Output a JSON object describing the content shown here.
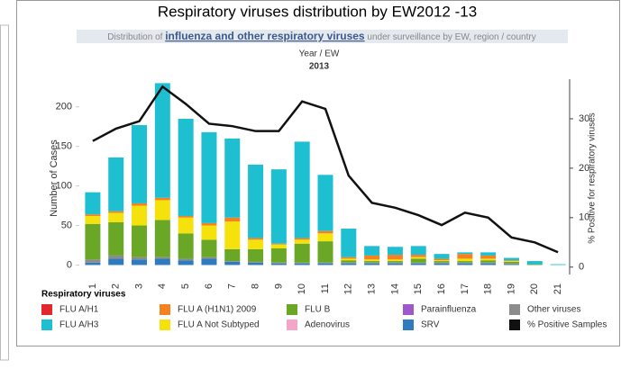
{
  "chart_data": {
    "type": "stacked_bar_line",
    "title": "Respiratory viruses distribution by EW2012 -13",
    "subtitle": [
      "Distribution of",
      "influenza and other respiratory viruses",
      "under surveillance by EW, region / country"
    ],
    "x_header": "Year / EW",
    "x_group": "2013",
    "ylabel": "Number of Cases",
    "y2label": "% Positive for respiratory viruses",
    "legend_title": "Respiratory viruses",
    "categories": [
      "1",
      "2",
      "3",
      "4",
      "5",
      "6",
      "7",
      "8",
      "9",
      "10",
      "11",
      "12",
      "13",
      "14",
      "15",
      "16",
      "17",
      "18",
      "19",
      "20",
      "21"
    ],
    "ylim": [
      -12,
      235
    ],
    "yticks": [
      0,
      50,
      100,
      150,
      200
    ],
    "y2lim": [
      -1.5,
      38
    ],
    "y2ticks": [
      0,
      10,
      20,
      30
    ],
    "series": [
      {
        "name": "FLU A/H1",
        "color": "#e0282e",
        "values": [
          0,
          0,
          0,
          0,
          0,
          0,
          0,
          0,
          0,
          0,
          0,
          0,
          0,
          0,
          0,
          0,
          0,
          0,
          0,
          0,
          0
        ]
      },
      {
        "name": "FLU A (H1N1) 2009",
        "color": "#f58220",
        "values": [
          2,
          2,
          3,
          3,
          2,
          3,
          5,
          2,
          1,
          2,
          3,
          2,
          5,
          6,
          3,
          2,
          6,
          4,
          1,
          0,
          0
        ]
      },
      {
        "name": "FLU B",
        "color": "#6aa727",
        "values": [
          45,
          42,
          40,
          47,
          32,
          22,
          15,
          16,
          18,
          24,
          27,
          3,
          2,
          2,
          5,
          2,
          2,
          3,
          2,
          1,
          0
        ]
      },
      {
        "name": "Parainfluenza",
        "color": "#9b59c9",
        "values": [
          0,
          0,
          0,
          0,
          0,
          0,
          0,
          0,
          0,
          0,
          0,
          0,
          0,
          0,
          0,
          0,
          0,
          0,
          0,
          0,
          0
        ]
      },
      {
        "name": "Other viruses",
        "color": "#8c8c8c",
        "values": [
          4,
          4,
          3,
          2,
          2,
          2,
          1,
          1,
          1,
          1,
          1,
          1,
          1,
          1,
          1,
          1,
          1,
          1,
          1,
          0,
          0
        ]
      },
      {
        "name": "FLU A/H3",
        "color": "#1fbfd2",
        "values": [
          28,
          68,
          99,
          145,
          123,
          115,
          100,
          93,
          94,
          122,
          71,
          36,
          12,
          10,
          11,
          6,
          2,
          4,
          3,
          4,
          1
        ]
      },
      {
        "name": "FLU A Not Subtyped",
        "color": "#f5e20c",
        "values": [
          10,
          12,
          25,
          25,
          20,
          18,
          35,
          12,
          5,
          5,
          10,
          2,
          2,
          2,
          2,
          1,
          3,
          2,
          1,
          0,
          0
        ]
      },
      {
        "name": "Adenovirus",
        "color": "#f4a6c8",
        "values": [
          0,
          0,
          0,
          0,
          0,
          0,
          0,
          0,
          0,
          0,
          0,
          0,
          0,
          0,
          0,
          0,
          0,
          0,
          0,
          0,
          0
        ]
      },
      {
        "name": "SRV",
        "color": "#2f7bbf",
        "values": [
          3,
          8,
          7,
          8,
          6,
          8,
          4,
          3,
          2,
          2,
          2,
          2,
          2,
          2,
          2,
          2,
          2,
          2,
          1,
          0,
          0
        ]
      },
      {
        "name": "% Positive Samples",
        "color": "#111111",
        "axis": "y2",
        "values": [
          25.5,
          28,
          29.5,
          36.5,
          33,
          29,
          28.5,
          27.5,
          27.5,
          33.5,
          32,
          18.5,
          13,
          12,
          10.5,
          8.5,
          11,
          10,
          6,
          5,
          3
        ]
      }
    ]
  }
}
